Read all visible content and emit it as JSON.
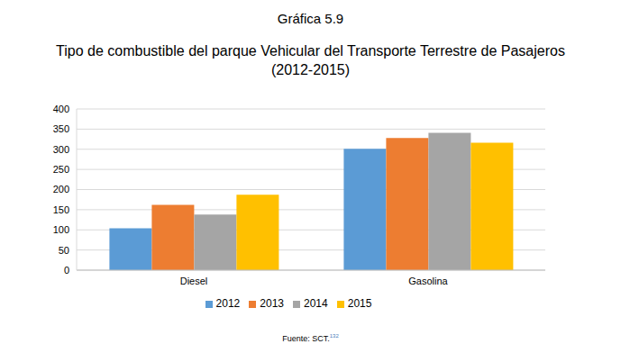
{
  "chart_data": {
    "type": "bar",
    "figure_label": "Gráfica 5.9",
    "title": "Tipo de combustible del parque Vehicular del Transporte Terrestre de Pasajeros\n(2012-2015)",
    "categories": [
      "Diesel",
      "Gasolina"
    ],
    "series": [
      {
        "name": "2012",
        "color": "#5b9bd5",
        "values": [
          104,
          301
        ]
      },
      {
        "name": "2013",
        "color": "#ed7d31",
        "values": [
          162,
          328
        ]
      },
      {
        "name": "2014",
        "color": "#a5a5a5",
        "values": [
          138,
          341
        ]
      },
      {
        "name": "2015",
        "color": "#ffc000",
        "values": [
          187,
          316
        ]
      }
    ],
    "ylim": [
      0,
      400
    ],
    "yticks": [
      0,
      50,
      100,
      150,
      200,
      250,
      300,
      350,
      400
    ],
    "grid": true,
    "legend": "bottom",
    "source": "Fuente: SCT.",
    "source_ref": "132"
  }
}
